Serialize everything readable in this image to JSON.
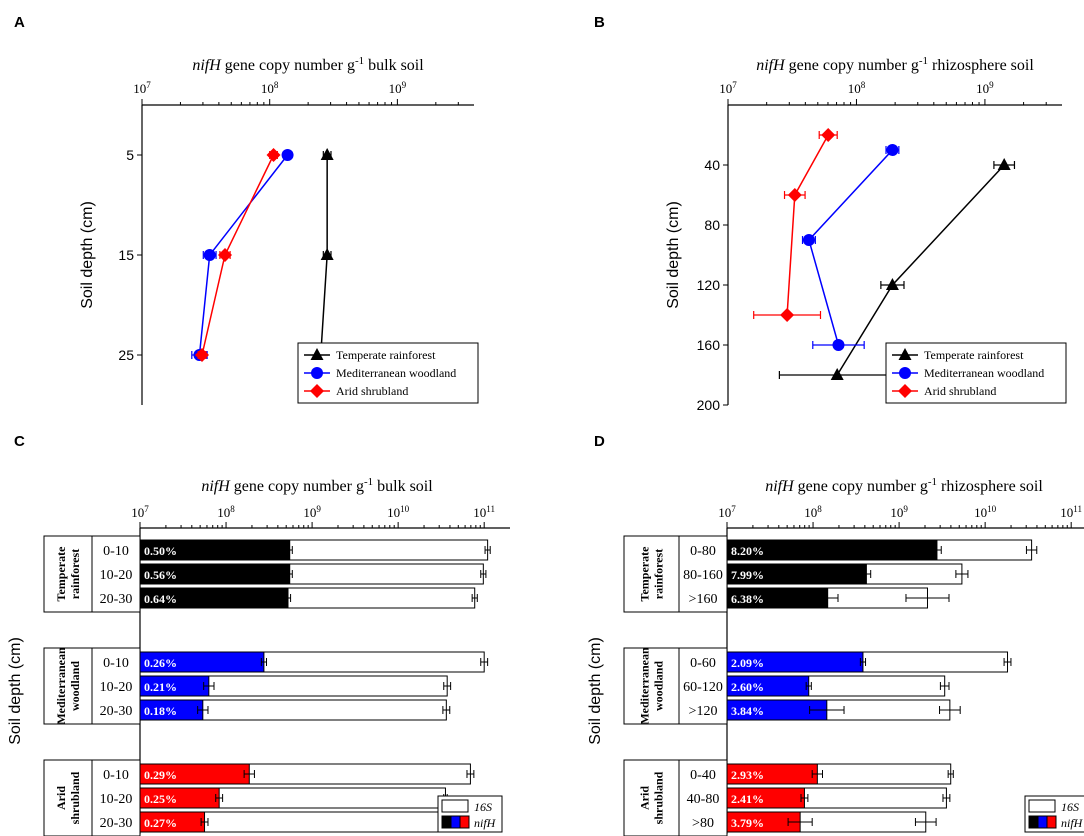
{
  "figure": {
    "panel_labels": [
      "A",
      "B",
      "C",
      "D"
    ]
  },
  "colors": {
    "temperate": "#000000",
    "mediterranean": "#0000ff",
    "arid": "#ff0000",
    "bar16s": "#ffffff"
  },
  "chart_data": [
    {
      "panel": "A",
      "type": "line",
      "title_italic": "nifH",
      "title_pre": " gene copy number g",
      "title_sup": "-1",
      "title_post": " bulk soil",
      "ylabel": "Soil depth (cm)",
      "x_scale": "log",
      "xlim_exp": [
        7,
        9.6
      ],
      "x_ticks": [
        {
          "exp": 7,
          "label": "10",
          "sup": "7"
        },
        {
          "exp": 8,
          "label": "10",
          "sup": "8"
        },
        {
          "exp": 9,
          "label": "10",
          "sup": "9"
        }
      ],
      "ylim": [
        0,
        30
      ],
      "y_ticks": [
        5,
        15,
        25
      ],
      "legend": [
        "Temperate rainforest",
        "Mediterranean woodland",
        "Arid shrubland"
      ],
      "series": [
        {
          "name": "Temperate rainforest",
          "color": "#000000",
          "marker": "triangle",
          "points": [
            {
              "y": 5,
              "x_exp": 8.45,
              "err": 0.03
            },
            {
              "y": 15,
              "x_exp": 8.45,
              "err": 0.03
            },
            {
              "y": 25,
              "x_exp": 8.4,
              "err": 0.03
            }
          ]
        },
        {
          "name": "Mediterranean woodland",
          "color": "#0000ff",
          "marker": "circle",
          "points": [
            {
              "y": 5,
              "x_exp": 8.14,
              "err": 0.02
            },
            {
              "y": 15,
              "x_exp": 7.53,
              "err": 0.05
            },
            {
              "y": 25,
              "x_exp": 7.45,
              "err": 0.06
            }
          ]
        },
        {
          "name": "Arid shrubland",
          "color": "#ff0000",
          "marker": "diamond",
          "points": [
            {
              "y": 5,
              "x_exp": 8.03,
              "err": 0.03
            },
            {
              "y": 15,
              "x_exp": 7.65,
              "err": 0.04
            },
            {
              "y": 25,
              "x_exp": 7.47,
              "err": 0.03
            }
          ]
        }
      ]
    },
    {
      "panel": "B",
      "type": "line",
      "title_italic": "nifH",
      "title_pre": " gene copy number g",
      "title_sup": "-1",
      "title_post": " rhizosphere soil",
      "ylabel": "Soil depth (cm)",
      "x_scale": "log",
      "xlim_exp": [
        7,
        9.6
      ],
      "x_ticks": [
        {
          "exp": 7,
          "label": "10",
          "sup": "7"
        },
        {
          "exp": 8,
          "label": "10",
          "sup": "8"
        },
        {
          "exp": 9,
          "label": "10",
          "sup": "9"
        }
      ],
      "ylim": [
        0,
        200
      ],
      "y_ticks": [
        40,
        80,
        120,
        160,
        200
      ],
      "legend": [
        "Temperate rainforest",
        "Mediterranean woodland",
        "Arid shrubland"
      ],
      "series": [
        {
          "name": "Temperate rainforest",
          "color": "#000000",
          "marker": "triangle",
          "points": [
            {
              "y": 40,
              "x_exp": 9.15,
              "err": 0.08
            },
            {
              "y": 120,
              "x_exp": 8.28,
              "err": 0.09
            },
            {
              "y": 180,
              "x_exp": 7.85,
              "err": 0.45
            }
          ]
        },
        {
          "name": "Mediterranean woodland",
          "color": "#0000ff",
          "marker": "circle",
          "points": [
            {
              "y": 30,
              "x_exp": 8.28,
              "err": 0.05
            },
            {
              "y": 90,
              "x_exp": 7.63,
              "err": 0.05
            },
            {
              "y": 160,
              "x_exp": 7.86,
              "err": 0.2
            }
          ]
        },
        {
          "name": "Arid shrubland",
          "color": "#ff0000",
          "marker": "diamond",
          "points": [
            {
              "y": 20,
              "x_exp": 7.78,
              "err": 0.07
            },
            {
              "y": 60,
              "x_exp": 7.52,
              "err": 0.08
            },
            {
              "y": 140,
              "x_exp": 7.46,
              "err": 0.26
            }
          ]
        }
      ]
    },
    {
      "panel": "C",
      "type": "bar",
      "orientation": "horizontal",
      "title_italic": "nifH",
      "title_pre": " gene copy number g",
      "title_sup": "-1",
      "title_post": " bulk soil",
      "ylabel": "Soil depth (cm)",
      "x_scale": "log",
      "xlim_exp": [
        7,
        11.3
      ],
      "x_ticks": [
        {
          "exp": 7,
          "label": "10",
          "sup": "7"
        },
        {
          "exp": 8,
          "label": "10",
          "sup": "8"
        },
        {
          "exp": 9,
          "label": "10",
          "sup": "9"
        },
        {
          "exp": 10,
          "label": "10",
          "sup": "10"
        },
        {
          "exp": 11,
          "label": "10",
          "sup": "11"
        }
      ],
      "legend": [
        "16S",
        "nifH"
      ],
      "groups": [
        {
          "name_lines": [
            "Temperate",
            "rainforest"
          ],
          "color": "#000000",
          "rows": [
            {
              "depth": "0-10",
              "pct": "0.50%",
              "s16": 11.04,
              "s16_err": 0.03,
              "nif": 8.74,
              "nif_err": 0.03
            },
            {
              "depth": "10-20",
              "pct": "0.56%",
              "s16": 10.99,
              "s16_err": 0.03,
              "nif": 8.74,
              "nif_err": 0.03
            },
            {
              "depth": "20-30",
              "pct": "0.64%",
              "s16": 10.89,
              "s16_err": 0.03,
              "nif": 8.72,
              "nif_err": 0.03
            }
          ]
        },
        {
          "name_lines": [
            "Mediterranean",
            "woodland"
          ],
          "color": "#0000ff",
          "rows": [
            {
              "depth": "0-10",
              "pct": "0.26%",
              "s16": 11.0,
              "s16_err": 0.04,
              "nif": 8.44,
              "nif_err": 0.03
            },
            {
              "depth": "10-20",
              "pct": "0.21%",
              "s16": 10.57,
              "s16_err": 0.04,
              "nif": 7.8,
              "nif_err": 0.06
            },
            {
              "depth": "20-30",
              "pct": "0.18%",
              "s16": 10.56,
              "s16_err": 0.04,
              "nif": 7.73,
              "nif_err": 0.06
            }
          ]
        },
        {
          "name_lines": [
            "Arid",
            "shrubland"
          ],
          "color": "#ff0000",
          "rows": [
            {
              "depth": "0-10",
              "pct": "0.29%",
              "s16": 10.84,
              "s16_err": 0.04,
              "nif": 8.27,
              "nif_err": 0.06
            },
            {
              "depth": "10-20",
              "pct": "0.25%",
              "s16": 10.55,
              "s16_err": 0.02,
              "nif": 7.92,
              "nif_err": 0.04
            },
            {
              "depth": "20-30",
              "pct": "0.27%",
              "s16": 10.54,
              "s16_err": 0.02,
              "nif": 7.75,
              "nif_err": 0.04
            }
          ]
        }
      ]
    },
    {
      "panel": "D",
      "type": "bar",
      "orientation": "horizontal",
      "title_italic": "nifH",
      "title_pre": " gene copy number g",
      "title_sup": "-1",
      "title_post": " rhizosphere soil",
      "ylabel": "Soil depth (cm)",
      "x_scale": "log",
      "xlim_exp": [
        7,
        11.3
      ],
      "x_ticks": [
        {
          "exp": 7,
          "label": "10",
          "sup": "7"
        },
        {
          "exp": 8,
          "label": "10",
          "sup": "8"
        },
        {
          "exp": 9,
          "label": "10",
          "sup": "9"
        },
        {
          "exp": 10,
          "label": "10",
          "sup": "10"
        },
        {
          "exp": 11,
          "label": "10",
          "sup": "11"
        }
      ],
      "legend": [
        "16S",
        "nifH"
      ],
      "groups": [
        {
          "name_lines": [
            "Temperate",
            "rainforest"
          ],
          "color": "#000000",
          "rows": [
            {
              "depth": "0-80",
              "pct": "8.20%",
              "s16": 10.54,
              "s16_err": 0.06,
              "nif": 9.44,
              "nif_err": 0.05
            },
            {
              "depth": "80-160",
              "pct": "7.99%",
              "s16": 9.73,
              "s16_err": 0.07,
              "nif": 8.62,
              "nif_err": 0.05
            },
            {
              "depth": ">160",
              "pct": "6.38%",
              "s16": 9.33,
              "s16_err": 0.25,
              "nif": 8.17,
              "nif_err": 0.12
            }
          ]
        },
        {
          "name_lines": [
            "Mediterranean",
            "woodland"
          ],
          "color": "#0000ff",
          "rows": [
            {
              "depth": "0-60",
              "pct": "2.09%",
              "s16": 10.26,
              "s16_err": 0.04,
              "nif": 8.58,
              "nif_err": 0.03
            },
            {
              "depth": "60-120",
              "pct": "2.60%",
              "s16": 9.53,
              "s16_err": 0.05,
              "nif": 7.95,
              "nif_err": 0.03
            },
            {
              "depth": ">120",
              "pct": "3.84%",
              "s16": 9.59,
              "s16_err": 0.12,
              "nif": 8.16,
              "nif_err": 0.2
            }
          ]
        },
        {
          "name_lines": [
            "Arid",
            "shrubland"
          ],
          "color": "#ff0000",
          "rows": [
            {
              "depth": "0-40",
              "pct": "2.93%",
              "s16": 9.6,
              "s16_err": 0.03,
              "nif": 8.05,
              "nif_err": 0.06
            },
            {
              "depth": "40-80",
              "pct": "2.41%",
              "s16": 9.55,
              "s16_err": 0.04,
              "nif": 7.9,
              "nif_err": 0.04
            },
            {
              "depth": ">80",
              "pct": "3.79%",
              "s16": 9.31,
              "s16_err": 0.12,
              "nif": 7.85,
              "nif_err": 0.14
            }
          ]
        }
      ]
    }
  ]
}
